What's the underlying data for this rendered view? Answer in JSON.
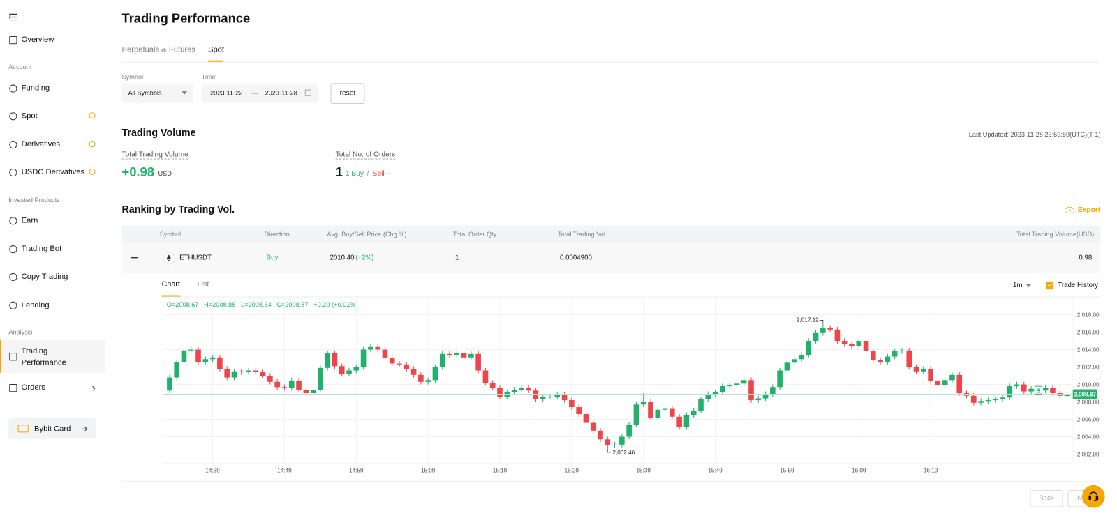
{
  "sidebar": {
    "overview": "Overview",
    "sections": [
      {
        "title": "Account",
        "items": [
          "Funding",
          "Spot",
          "Derivatives",
          "USDC Derivatives"
        ]
      },
      {
        "title": "Invested Products",
        "items": [
          "Earn",
          "Trading Bot",
          "Copy Trading",
          "Lending"
        ]
      },
      {
        "title": "Analysis",
        "items": [
          "Trading Performance",
          "Orders"
        ]
      }
    ],
    "card": "Bybit Card"
  },
  "header": {
    "title": "Trading Performance",
    "tabs": [
      "Perpetuals & Futures",
      "Spot"
    ]
  },
  "filters": {
    "symbol_label": "Symbol",
    "symbol_value": "All Symbols",
    "time_label": "Time",
    "start": "2023-11-22",
    "end": "2023-11-28",
    "reset": "reset"
  },
  "volume": {
    "title": "Trading Volume",
    "last_updated": "Last Updated: 2023-11-28 23:59:59(UTC)(T-1)",
    "total_volume_label": "Total Trading Volume",
    "total_volume": "+0.98",
    "unit": "USD",
    "orders_label": "Total No. of Orders",
    "orders": "1",
    "buy": "1 Buy",
    "sep": "/",
    "sell": "Sell --"
  },
  "ranking": {
    "title": "Ranking by Trading Vol.",
    "export": "Export",
    "table": {
      "headers": [
        "Symbol",
        "Direction",
        "Avg. Buy/Sell Price (Chg %)",
        "Total Order Qty.",
        "Total Trading Vol.",
        "Total Trading Volume(USD)"
      ],
      "rows": [
        {
          "symbol": "ETHUSDT",
          "direction": "Buy",
          "price": "2010.40",
          "change": "(+2%)",
          "qty": "1",
          "volume": "0.0004900",
          "volume_usd": "0.98"
        }
      ]
    }
  },
  "detail": {
    "tabs": [
      "Chart",
      "List"
    ],
    "interval": "1m",
    "trade_history": "Trade History",
    "ohlc": [
      "O=2008.67",
      "H=2008.88",
      "L=2008.64",
      "C=2008.87",
      "+0.20 (+0.01%)"
    ]
  },
  "pagination": {
    "back": "Back",
    "next": "Next"
  },
  "chart_data": {
    "type": "candlestick",
    "up_color": "#20b26c",
    "down_color": "#ef454a",
    "grid": true,
    "x": [
      "14:33",
      "14:34",
      "14:35",
      "14:36",
      "14:37",
      "14:38",
      "14:39",
      "14:40",
      "14:41",
      "14:42",
      "14:43",
      "14:44",
      "14:45",
      "14:46",
      "14:47",
      "14:48",
      "14:49",
      "14:50",
      "14:51",
      "14:52",
      "14:53",
      "14:54",
      "14:55",
      "14:56",
      "14:57",
      "14:58",
      "14:59",
      "15:00",
      "15:01",
      "15:02",
      "15:03",
      "15:04",
      "15:05",
      "15:06",
      "15:07",
      "15:08",
      "15:09",
      "15:10",
      "15:11",
      "15:12",
      "15:13",
      "15:14",
      "15:15",
      "15:16",
      "15:17",
      "15:18",
      "15:19",
      "15:20",
      "15:21",
      "15:22",
      "15:23",
      "15:24",
      "15:25",
      "15:26",
      "15:27",
      "15:28",
      "15:29",
      "15:30",
      "15:31",
      "15:32",
      "15:33",
      "15:34",
      "15:35",
      "15:36",
      "15:37",
      "15:38",
      "15:39",
      "15:40",
      "15:41",
      "15:42",
      "15:43",
      "15:44",
      "15:45",
      "15:46",
      "15:47",
      "15:48",
      "15:49",
      "15:50",
      "15:51",
      "15:52",
      "15:53",
      "15:54",
      "15:55",
      "15:56",
      "15:57",
      "15:58",
      "15:59",
      "16:00",
      "16:01",
      "16:02",
      "16:03",
      "16:04",
      "16:05",
      "16:06",
      "16:07",
      "16:08",
      "16:09",
      "16:10",
      "16:11",
      "16:12",
      "16:13",
      "16:14",
      "16:15",
      "16:16",
      "16:17",
      "16:18",
      "16:19",
      "16:20",
      "16:21",
      "16:22",
      "16:23",
      "16:24",
      "16:25",
      "16:26",
      "16:27",
      "16:28",
      "16:29",
      "16:30",
      "16:31",
      "16:32",
      "16:33",
      "16:34",
      "16:35",
      "16:36",
      "16:37",
      "16:38"
    ],
    "open": [
      2009.3,
      2010.8,
      2012.6,
      2013.9,
      2014.0,
      2012.6,
      2012.9,
      2013.1,
      2011.8,
      2010.8,
      2011.5,
      2011.4,
      2011.6,
      2011.4,
      2011.0,
      2010.3,
      2009.7,
      2009.6,
      2010.4,
      2009.4,
      2009.0,
      2009.4,
      2011.9,
      2013.6,
      2012.1,
      2011.2,
      2011.6,
      2012.0,
      2014.0,
      2014.3,
      2014.0,
      2013.0,
      2012.4,
      2012.3,
      2011.8,
      2011.1,
      2010.3,
      2010.5,
      2012.0,
      2013.5,
      2013.4,
      2013.6,
      2013.1,
      2013.5,
      2011.6,
      2010.2,
      2009.6,
      2008.6,
      2009.1,
      2009.4,
      2009.6,
      2009.3,
      2008.3,
      2008.6,
      2008.6,
      2008.8,
      2008.2,
      2007.4,
      2006.6,
      2005.6,
      2004.7,
      2003.7,
      2003.0,
      2003.1,
      2004.0,
      2005.4,
      2007.7,
      2008.0,
      2006.2,
      2007.1,
      2007.2,
      2006.3,
      2005.1,
      2006.5,
      2007.0,
      2008.3,
      2008.9,
      2009.1,
      2009.8,
      2009.9,
      2010.1,
      2010.5,
      2008.2,
      2008.4,
      2008.9,
      2009.7,
      2011.6,
      2012.5,
      2012.9,
      2013.4,
      2015.0,
      2015.9,
      2016.5,
      2016.3,
      2015.0,
      2014.6,
      2014.4,
      2015.0,
      2013.8,
      2012.8,
      2012.6,
      2013.2,
      2013.8,
      2013.9,
      2012.0,
      2011.5,
      2011.8,
      2010.4,
      2009.9,
      2010.5,
      2011.1,
      2009.0,
      2008.7,
      2007.9,
      2008.1,
      2008.2,
      2008.3,
      2008.5,
      2009.8,
      2010.0,
      2009.2,
      2009.5,
      2009.3,
      2009.6,
      2009.0,
      2008.67
    ],
    "high": [
      2011.1,
      2012.9,
      2014.2,
      2014.3,
      2014.3,
      2013.2,
      2013.4,
      2013.4,
      2012.1,
      2011.8,
      2011.8,
      2011.9,
      2011.9,
      2011.7,
      2011.3,
      2010.6,
      2010.0,
      2010.7,
      2010.7,
      2009.7,
      2009.7,
      2012.2,
      2013.9,
      2013.9,
      2012.4,
      2011.9,
      2012.3,
      2014.3,
      2014.6,
      2014.6,
      2014.3,
      2013.3,
      2012.7,
      2012.6,
      2012.1,
      2011.4,
      2010.8,
      2012.3,
      2013.8,
      2013.8,
      2013.9,
      2013.9,
      2013.8,
      2013.8,
      2011.9,
      2010.5,
      2009.9,
      2009.4,
      2009.7,
      2009.9,
      2009.9,
      2009.6,
      2008.9,
      2008.9,
      2009.1,
      2009.1,
      2008.5,
      2007.7,
      2006.9,
      2005.9,
      2005.0,
      2004.0,
      2003.4,
      2004.3,
      2005.7,
      2008.0,
      2009.0,
      2008.3,
      2007.4,
      2007.5,
      2007.5,
      2006.6,
      2006.8,
      2007.3,
      2008.6,
      2009.2,
      2009.4,
      2010.1,
      2010.2,
      2010.4,
      2010.8,
      2010.8,
      2008.7,
      2009.2,
      2010.0,
      2011.9,
      2012.8,
      2013.2,
      2013.7,
      2015.3,
      2016.2,
      2017.12,
      2016.8,
      2016.6,
      2015.3,
      2014.9,
      2015.3,
      2015.3,
      2014.1,
      2013.1,
      2013.5,
      2014.1,
      2014.2,
      2014.2,
      2012.3,
      2012.1,
      2012.1,
      2010.7,
      2010.8,
      2011.4,
      2011.4,
      2009.3,
      2009.0,
      2008.4,
      2008.5,
      2008.6,
      2008.8,
      2010.1,
      2010.3,
      2010.3,
      2009.8,
      2009.8,
      2009.9,
      2009.9,
      2009.3,
      2008.88
    ],
    "low": [
      2009.0,
      2010.5,
      2012.3,
      2013.6,
      2012.3,
      2012.3,
      2012.6,
      2011.5,
      2010.5,
      2010.5,
      2011.1,
      2011.1,
      2011.1,
      2010.7,
      2010.0,
      2009.4,
      2009.3,
      2009.3,
      2009.1,
      2008.7,
      2008.7,
      2009.1,
      2011.6,
      2011.8,
      2010.9,
      2010.9,
      2011.3,
      2011.7,
      2013.7,
      2013.7,
      2012.7,
      2012.1,
      2012.0,
      2011.5,
      2010.8,
      2010.0,
      2010.0,
      2010.2,
      2011.7,
      2013.1,
      2013.1,
      2012.8,
      2012.8,
      2011.3,
      2009.9,
      2009.3,
      2008.3,
      2008.3,
      2008.8,
      2009.1,
      2009.0,
      2008.0,
      2008.0,
      2008.3,
      2008.3,
      2007.9,
      2007.1,
      2006.3,
      2005.3,
      2004.4,
      2003.4,
      2002.46,
      2002.7,
      2002.8,
      2003.7,
      2005.1,
      2007.4,
      2005.9,
      2005.9,
      2006.8,
      2006.0,
      2004.8,
      2004.8,
      2006.2,
      2006.7,
      2008.0,
      2008.6,
      2008.8,
      2009.5,
      2009.6,
      2009.8,
      2007.9,
      2007.9,
      2008.1,
      2008.6,
      2009.4,
      2011.3,
      2012.2,
      2012.6,
      2013.1,
      2014.7,
      2015.6,
      2016.0,
      2014.7,
      2014.3,
      2014.1,
      2014.1,
      2013.5,
      2012.5,
      2012.3,
      2012.3,
      2012.9,
      2013.5,
      2011.7,
      2011.2,
      2011.2,
      2010.1,
      2009.6,
      2009.6,
      2010.2,
      2008.7,
      2008.4,
      2007.6,
      2007.6,
      2007.8,
      2007.9,
      2008.0,
      2008.2,
      2009.5,
      2008.9,
      2008.9,
      2009.0,
      2009.0,
      2008.7,
      2008.4,
      2008.64
    ],
    "close": [
      2010.8,
      2012.6,
      2013.9,
      2014.0,
      2012.6,
      2012.9,
      2013.1,
      2011.8,
      2010.8,
      2011.5,
      2011.4,
      2011.6,
      2011.4,
      2011.0,
      2010.3,
      2009.7,
      2009.6,
      2010.4,
      2009.4,
      2009.0,
      2009.4,
      2011.9,
      2013.6,
      2012.1,
      2011.2,
      2011.6,
      2012.0,
      2014.0,
      2014.3,
      2014.0,
      2013.0,
      2012.4,
      2012.3,
      2011.8,
      2011.1,
      2010.3,
      2010.5,
      2012.0,
      2013.5,
      2013.4,
      2013.6,
      2013.1,
      2013.5,
      2011.6,
      2010.2,
      2009.6,
      2008.6,
      2009.1,
      2009.4,
      2009.6,
      2009.3,
      2008.3,
      2008.6,
      2008.6,
      2008.8,
      2008.2,
      2007.4,
      2006.6,
      2005.6,
      2004.7,
      2003.7,
      2003.0,
      2003.1,
      2004.0,
      2005.4,
      2007.7,
      2008.0,
      2006.2,
      2007.1,
      2007.2,
      2006.3,
      2005.1,
      2006.5,
      2007.0,
      2008.3,
      2008.9,
      2009.1,
      2009.8,
      2009.9,
      2010.1,
      2010.5,
      2008.2,
      2008.4,
      2008.9,
      2009.7,
      2011.6,
      2012.5,
      2012.9,
      2013.4,
      2015.0,
      2015.9,
      2016.5,
      2016.3,
      2015.0,
      2014.6,
      2014.4,
      2015.0,
      2013.8,
      2012.8,
      2012.6,
      2013.2,
      2013.8,
      2013.9,
      2012.0,
      2011.5,
      2011.8,
      2010.4,
      2009.9,
      2010.5,
      2011.1,
      2009.0,
      2008.7,
      2007.9,
      2008.1,
      2008.2,
      2008.3,
      2008.5,
      2009.8,
      2010.0,
      2009.2,
      2009.5,
      2009.3,
      2009.6,
      2009.0,
      2008.7,
      2008.87
    ],
    "ylim": [
      2000.9,
      2020.0
    ],
    "yticks": [
      {
        "value": 2002,
        "label": "2,002.00"
      },
      {
        "value": 2004,
        "label": "2,004.00"
      },
      {
        "value": 2006,
        "label": "2,006.00"
      },
      {
        "value": 2008,
        "label": "2,008.00"
      },
      {
        "value": 2010,
        "label": "2,010.00"
      },
      {
        "value": 2012,
        "label": "2,012.00"
      },
      {
        "value": 2014,
        "label": "2,014.00"
      },
      {
        "value": 2016,
        "label": "2,016.00"
      },
      {
        "value": 2018,
        "label": "2,018.00"
      }
    ],
    "xticks": [
      "14:39",
      "14:49",
      "14:59",
      "15:09",
      "15:19",
      "15:29",
      "15:39",
      "15:49",
      "15:59",
      "16:09",
      "16:19"
    ],
    "last_price_label": "2,008.87",
    "high_label": "2,017.12",
    "low_label": "2,002.46",
    "trade_marker": {
      "label": "B",
      "x": "16:34"
    }
  }
}
